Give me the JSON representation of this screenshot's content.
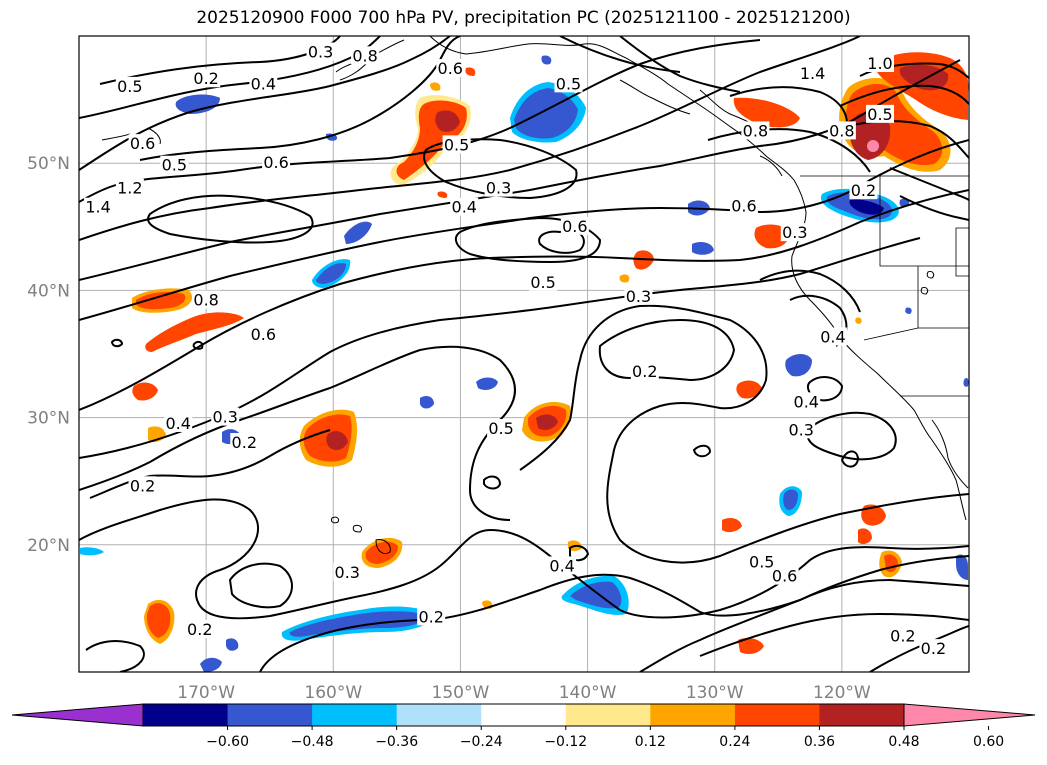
{
  "title": "2025120900 F000 700 hPa PV, precipitation PC (2025121100 - 2025121200)",
  "map": {
    "lon_range": [
      -180,
      -110
    ],
    "lat_range": [
      10,
      60
    ],
    "lon_ticks": [
      {
        "value": -170,
        "label": "170°W"
      },
      {
        "value": -160,
        "label": "160°W"
      },
      {
        "value": -150,
        "label": "150°W"
      },
      {
        "value": -140,
        "label": "140°W"
      },
      {
        "value": -130,
        "label": "130°W"
      },
      {
        "value": -120,
        "label": "120°W"
      }
    ],
    "lat_ticks": [
      {
        "value": 20,
        "label": "20°N"
      },
      {
        "value": 30,
        "label": "30°N"
      },
      {
        "value": 40,
        "label": "40°N"
      },
      {
        "value": 50,
        "label": "50°N"
      }
    ],
    "gridlines": true
  },
  "colorbar": {
    "colors": [
      "#9b30d0",
      "#00008b",
      "#3557cf",
      "#00bfff",
      "#afe1fb",
      "#ffffff",
      "#ffe98c",
      "#ffa500",
      "#ff4500",
      "#b22222",
      "#ff88aa"
    ],
    "tick_labels": [
      "−0.60",
      "−0.48",
      "−0.36",
      "−0.24",
      "−0.12",
      "0.12",
      "0.24",
      "0.36",
      "0.48",
      "0.60"
    ]
  },
  "contour_labels": [
    {
      "text": "0.2",
      "lon": -170.0,
      "lat": 56.6
    },
    {
      "text": "0.4",
      "lon": -165.5,
      "lat": 56.2
    },
    {
      "text": "0.3",
      "lon": -161.0,
      "lat": 58.7
    },
    {
      "text": "0.8",
      "lon": -157.5,
      "lat": 58.4
    },
    {
      "text": "0.6",
      "lon": -150.8,
      "lat": 57.4
    },
    {
      "text": "0.5",
      "lon": -141.5,
      "lat": 56.2
    },
    {
      "text": "0.5",
      "lon": -176.0,
      "lat": 56.0
    },
    {
      "text": "0.6",
      "lon": -175.0,
      "lat": 51.5
    },
    {
      "text": "0.5",
      "lon": -172.5,
      "lat": 49.8
    },
    {
      "text": "1.2",
      "lon": -176.0,
      "lat": 48.0
    },
    {
      "text": "1.4",
      "lon": -178.5,
      "lat": 46.5
    },
    {
      "text": "0.6",
      "lon": -164.5,
      "lat": 50.0
    },
    {
      "text": "0.5",
      "lon": -150.3,
      "lat": 51.4
    },
    {
      "text": "0.3",
      "lon": -147.0,
      "lat": 48.0
    },
    {
      "text": "0.4",
      "lon": -149.7,
      "lat": 46.5
    },
    {
      "text": "0.6",
      "lon": -141.0,
      "lat": 45.0
    },
    {
      "text": "0.5",
      "lon": -143.5,
      "lat": 40.6
    },
    {
      "text": "0.8",
      "lon": -170.0,
      "lat": 39.2
    },
    {
      "text": "0.6",
      "lon": -165.5,
      "lat": 36.5
    },
    {
      "text": "0.3",
      "lon": -136.0,
      "lat": 39.5
    },
    {
      "text": "0.2",
      "lon": -135.5,
      "lat": 33.6
    },
    {
      "text": "0.4",
      "lon": -172.2,
      "lat": 29.5
    },
    {
      "text": "0.3",
      "lon": -168.5,
      "lat": 30.0
    },
    {
      "text": "0.2",
      "lon": -167.0,
      "lat": 28.0
    },
    {
      "text": "0.2",
      "lon": -175.0,
      "lat": 24.6
    },
    {
      "text": "0.5",
      "lon": -146.8,
      "lat": 29.1
    },
    {
      "text": "0.4",
      "lon": -122.8,
      "lat": 31.2
    },
    {
      "text": "0.3",
      "lon": -123.2,
      "lat": 29.0
    },
    {
      "text": "0.3",
      "lon": -158.9,
      "lat": 17.8
    },
    {
      "text": "0.4",
      "lon": -142.0,
      "lat": 18.3
    },
    {
      "text": "0.2",
      "lon": -152.3,
      "lat": 14.3
    },
    {
      "text": "0.5",
      "lon": -126.3,
      "lat": 18.6
    },
    {
      "text": "0.6",
      "lon": -124.5,
      "lat": 17.5
    },
    {
      "text": "0.2",
      "lon": -170.5,
      "lat": 13.3
    },
    {
      "text": "0.2",
      "lon": -115.2,
      "lat": 12.8
    },
    {
      "text": "0.2",
      "lon": -112.8,
      "lat": 11.8
    },
    {
      "text": "0.8",
      "lon": -126.8,
      "lat": 52.5
    },
    {
      "text": "0.6",
      "lon": -127.7,
      "lat": 46.6
    },
    {
      "text": "0.3",
      "lon": -123.7,
      "lat": 44.5
    },
    {
      "text": "0.4",
      "lon": -120.7,
      "lat": 36.3
    },
    {
      "text": "0.8",
      "lon": -120.0,
      "lat": 52.5
    },
    {
      "text": "0.5",
      "lon": -117.0,
      "lat": 53.8
    },
    {
      "text": "1.0",
      "lon": -117.0,
      "lat": 57.8
    },
    {
      "text": "1.4",
      "lon": -122.3,
      "lat": 57.0
    },
    {
      "text": "0.2",
      "lon": -118.3,
      "lat": 47.8
    }
  ]
}
